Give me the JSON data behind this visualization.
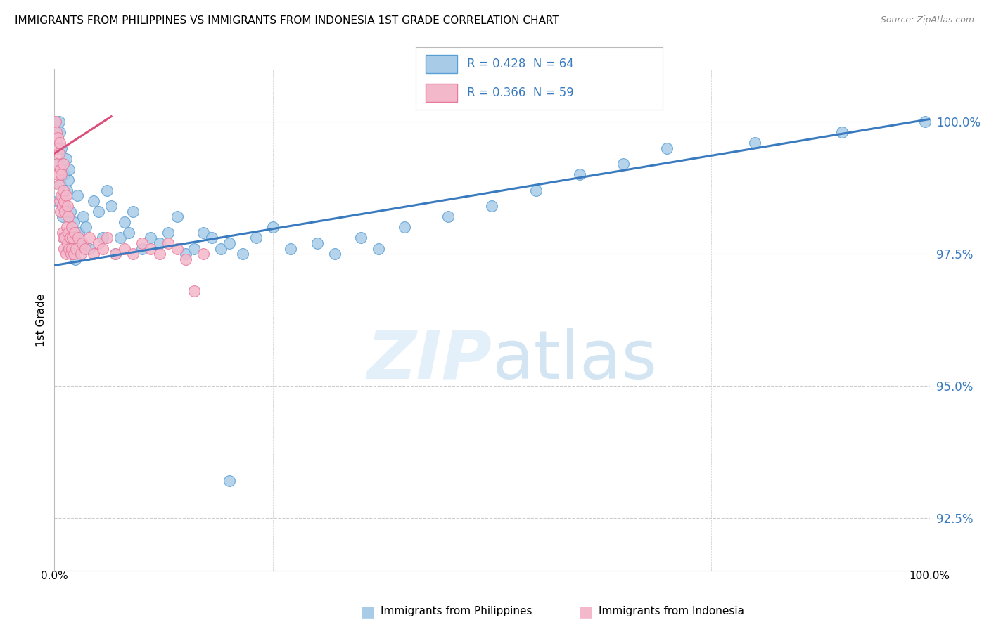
{
  "title": "IMMIGRANTS FROM PHILIPPINES VS IMMIGRANTS FROM INDONESIA 1ST GRADE CORRELATION CHART",
  "source": "Source: ZipAtlas.com",
  "ylabel": "1st Grade",
  "yticks": [
    92.5,
    95.0,
    97.5,
    100.0
  ],
  "ytick_labels": [
    "92.5%",
    "95.0%",
    "97.5%",
    "100.0%"
  ],
  "xlim": [
    0.0,
    100.0
  ],
  "ylim": [
    91.5,
    101.0
  ],
  "blue_R": 0.428,
  "blue_N": 64,
  "pink_R": 0.366,
  "pink_N": 59,
  "blue_color": "#a8cce8",
  "pink_color": "#f4b8cb",
  "blue_edge_color": "#5a9fd4",
  "pink_edge_color": "#e8799a",
  "blue_line_color": "#3a7bbf",
  "pink_line_color": "#d94f7a",
  "legend_label_blue": "Immigrants from Philippines",
  "legend_label_pink": "Immigrants from Indonesia",
  "blue_trend_x": [
    0.0,
    100.0
  ],
  "blue_trend_y": [
    97.28,
    100.05
  ],
  "pink_trend_x": [
    0.0,
    6.5
  ],
  "pink_trend_y": [
    99.4,
    100.1
  ],
  "blue_scatter_x": [
    0.3,
    0.4,
    0.5,
    0.6,
    0.7,
    0.8,
    0.9,
    1.0,
    1.1,
    1.2,
    1.3,
    1.4,
    1.5,
    1.6,
    1.7,
    1.8,
    2.0,
    2.2,
    2.4,
    2.6,
    2.8,
    3.0,
    3.3,
    3.6,
    4.0,
    4.5,
    5.0,
    5.5,
    6.0,
    6.5,
    7.0,
    7.5,
    8.0,
    8.5,
    9.0,
    10.0,
    11.0,
    12.0,
    13.0,
    14.0,
    15.0,
    16.0,
    17.0,
    18.0,
    19.0,
    20.0,
    21.5,
    23.0,
    25.0,
    27.0,
    30.0,
    32.0,
    35.0,
    37.0,
    40.0,
    45.0,
    50.0,
    55.0,
    60.0,
    65.0,
    70.0,
    80.0,
    90.0,
    99.5
  ],
  "blue_scatter_y": [
    99.2,
    98.5,
    100.0,
    99.8,
    98.8,
    99.5,
    98.2,
    97.8,
    99.0,
    98.4,
    99.3,
    98.7,
    97.6,
    98.9,
    99.1,
    98.3,
    97.5,
    98.1,
    97.4,
    98.6,
    97.9,
    97.7,
    98.2,
    98.0,
    97.6,
    98.5,
    98.3,
    97.8,
    98.7,
    98.4,
    97.5,
    97.8,
    98.1,
    97.9,
    98.3,
    97.6,
    97.8,
    97.7,
    97.9,
    98.2,
    97.5,
    97.6,
    97.9,
    97.8,
    97.6,
    97.7,
    97.5,
    97.8,
    98.0,
    97.6,
    97.7,
    97.5,
    97.8,
    97.6,
    98.0,
    98.2,
    98.4,
    98.7,
    99.0,
    99.2,
    99.5,
    99.6,
    99.8,
    100.0
  ],
  "blue_outlier_x": [
    20.0
  ],
  "blue_outlier_y": [
    93.2
  ],
  "pink_scatter_x": [
    0.1,
    0.2,
    0.3,
    0.3,
    0.4,
    0.4,
    0.5,
    0.5,
    0.6,
    0.6,
    0.7,
    0.7,
    0.8,
    0.8,
    0.9,
    0.9,
    1.0,
    1.0,
    1.0,
    1.1,
    1.1,
    1.2,
    1.2,
    1.3,
    1.3,
    1.4,
    1.5,
    1.5,
    1.6,
    1.6,
    1.7,
    1.8,
    1.9,
    2.0,
    2.0,
    2.1,
    2.2,
    2.3,
    2.5,
    2.7,
    3.0,
    3.2,
    3.5,
    4.0,
    4.5,
    5.0,
    5.5,
    6.0,
    7.0,
    8.0,
    9.0,
    10.0,
    11.0,
    12.0,
    13.0,
    14.0,
    15.0,
    16.0,
    17.0
  ],
  "pink_scatter_y": [
    100.0,
    99.8,
    99.5,
    99.2,
    99.7,
    99.0,
    99.4,
    98.8,
    99.6,
    98.5,
    99.1,
    98.3,
    99.0,
    98.6,
    98.4,
    97.9,
    99.2,
    98.7,
    97.8,
    98.5,
    97.6,
    98.3,
    97.8,
    98.6,
    97.5,
    98.0,
    98.4,
    97.7,
    97.9,
    98.2,
    97.6,
    97.8,
    97.5,
    98.0,
    97.6,
    97.8,
    97.5,
    97.9,
    97.6,
    97.8,
    97.5,
    97.7,
    97.6,
    97.8,
    97.5,
    97.7,
    97.6,
    97.8,
    97.5,
    97.6,
    97.5,
    97.7,
    97.6,
    97.5,
    97.7,
    97.6,
    97.4,
    96.8,
    97.5
  ]
}
